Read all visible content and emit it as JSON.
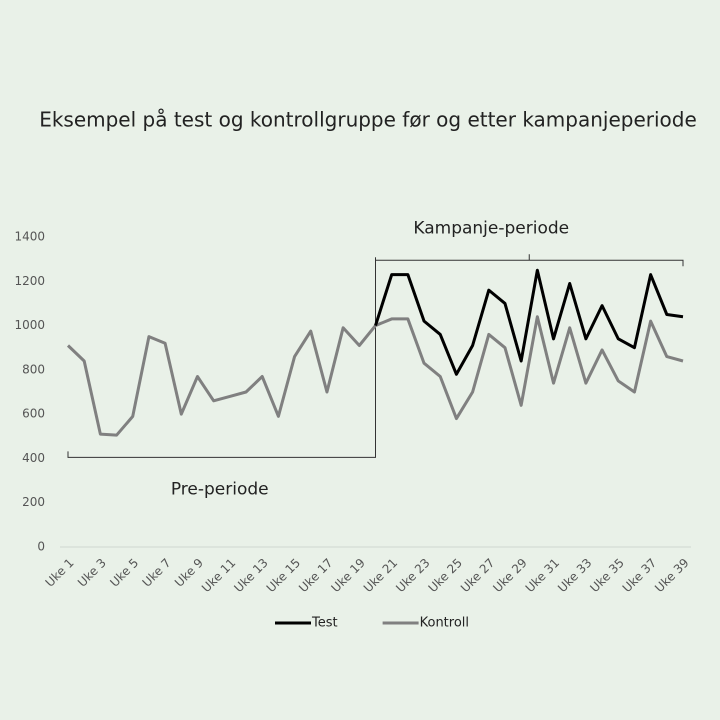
{
  "chart_data": {
    "type": "line",
    "title": "Eksempel på test og kontrollgruppe før og etter kampanjeperiode",
    "annotations": [
      "Pre-periode",
      "Kampanje-periode"
    ],
    "categories": [
      "Uke 1",
      null,
      "Uke 3",
      null,
      "Uke 5",
      null,
      "Uke 7",
      null,
      "Uke 9",
      null,
      "Uke 11",
      null,
      "Uke 13",
      null,
      "Uke 15",
      null,
      "Uke 17",
      null,
      "Uke 19",
      null,
      "Uke 21",
      null,
      "Uke 23",
      null,
      "Uke 25",
      null,
      "Uke 27",
      null,
      "Uke 29",
      null,
      "Uke 31",
      null,
      "Uke 33",
      null,
      "Uke 35",
      null,
      "Uke 37",
      null,
      "Uke 39"
    ],
    "series": [
      {
        "name": "Test",
        "color": "#000000",
        "values": [
          null,
          null,
          null,
          null,
          null,
          null,
          null,
          null,
          null,
          null,
          null,
          null,
          null,
          null,
          null,
          null,
          null,
          null,
          null,
          1000,
          1230,
          1230,
          1020,
          960,
          780,
          910,
          1160,
          1100,
          840,
          1250,
          940,
          1190,
          940,
          1090,
          940,
          900,
          1230,
          1050,
          1040
        ]
      },
      {
        "name": "Kontroll",
        "color": "#808080",
        "values": [
          910,
          840,
          510,
          505,
          590,
          950,
          920,
          600,
          770,
          660,
          680,
          700,
          770,
          590,
          860,
          975,
          700,
          990,
          910,
          1000,
          1030,
          1030,
          830,
          770,
          580,
          700,
          960,
          900,
          640,
          1040,
          740,
          990,
          740,
          890,
          750,
          700,
          1020,
          860,
          840
        ]
      }
    ],
    "ylim": [
      0,
      1400
    ],
    "yticks": [
      0,
      200,
      400,
      600,
      800,
      1000,
      1200,
      1400
    ],
    "grid": false
  }
}
